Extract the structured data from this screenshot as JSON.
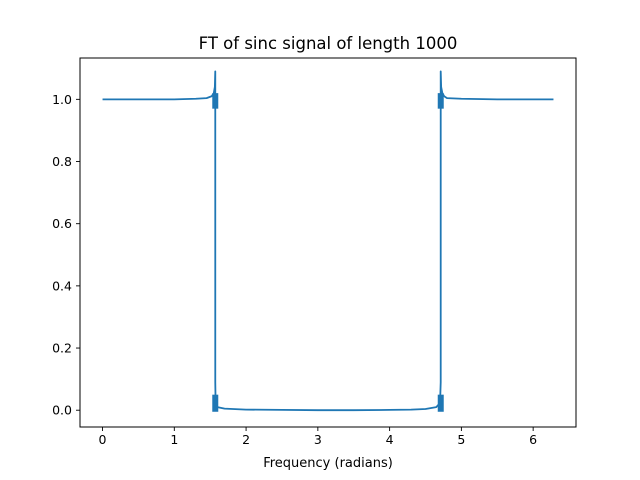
{
  "chart_data": {
    "type": "line",
    "title": "FT of sinc signal of length 1000",
    "xlabel": "Frequency (radians)",
    "ylabel": "",
    "xlim": [
      -0.314,
      6.597
    ],
    "ylim": [
      -0.054,
      1.133
    ],
    "xticks": [
      0,
      1,
      2,
      3,
      4,
      5,
      6
    ],
    "xtick_labels": [
      "0",
      "1",
      "2",
      "3",
      "4",
      "5",
      "6"
    ],
    "yticks": [
      0.0,
      0.2,
      0.4,
      0.6,
      0.8,
      1.0
    ],
    "ytick_labels": [
      "0.0",
      "0.2",
      "0.4",
      "0.6",
      "0.8",
      "1.0"
    ],
    "grid": false,
    "series": [
      {
        "color": "#1f77b4",
        "x": [
          0,
          0.5,
          1.0,
          1.3,
          1.45,
          1.52,
          1.55,
          1.565,
          1.5708,
          1.5708,
          1.575,
          1.585,
          1.6,
          1.7,
          2.0,
          2.5,
          3.0,
          3.1416,
          3.5,
          4.0,
          4.3,
          4.5,
          4.65,
          4.69,
          4.705,
          4.712,
          4.712,
          4.718,
          4.735,
          4.76,
          4.8,
          5.0,
          5.5,
          6.0,
          6.283
        ],
        "y": [
          1.0,
          1.0,
          1.0,
          1.002,
          1.004,
          1.01,
          1.02,
          1.04,
          1.09,
          0.09,
          0.03,
          0.015,
          0.01,
          0.005,
          0.002,
          0.001,
          0.0,
          0.0,
          0.0,
          0.001,
          0.002,
          0.004,
          0.01,
          0.02,
          0.04,
          0.09,
          1.09,
          1.04,
          1.02,
          1.01,
          1.004,
          1.002,
          1.0,
          1.0,
          1.0
        ]
      }
    ]
  }
}
